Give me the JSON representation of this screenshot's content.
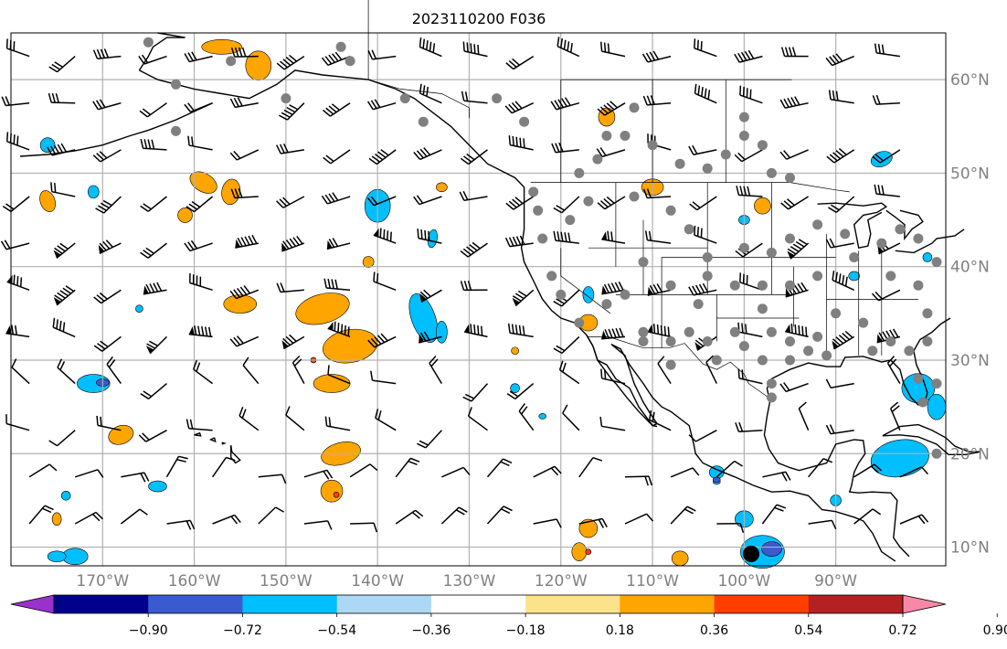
{
  "title": "2023110200 F036",
  "map": {
    "projection": "PlateCarree",
    "lon_range": [
      -180,
      -78
    ],
    "lat_range": [
      8,
      65
    ],
    "gridlines": true,
    "lon_labels": [
      "170°W",
      "160°W",
      "150°W",
      "140°W",
      "130°W",
      "120°W",
      "110°W",
      "100°W",
      "90°W"
    ],
    "lat_labels": [
      "10°N",
      "20°N",
      "30°N",
      "40°N",
      "50°N",
      "60°N"
    ],
    "large_marker_label": "black dot near 100°W, 9°N"
  },
  "colorbar": {
    "ticks": [
      "−0.90",
      "−0.72",
      "−0.54",
      "−0.36",
      "−0.18",
      "0.18",
      "0.36",
      "0.54",
      "0.72",
      "0.90"
    ],
    "colors": [
      "#9932cc",
      "#00008b",
      "#3a5bd0",
      "#00bfff",
      "#add8f5",
      "#ffffff",
      "#fbe38b",
      "#ffa500",
      "#ff3e00",
      "#b22222",
      "#f888a8"
    ],
    "extend": "both"
  },
  "legend_colors": {
    "station_dot": "#808080",
    "barb": "#000000",
    "grid": "#b0b0b0"
  }
}
